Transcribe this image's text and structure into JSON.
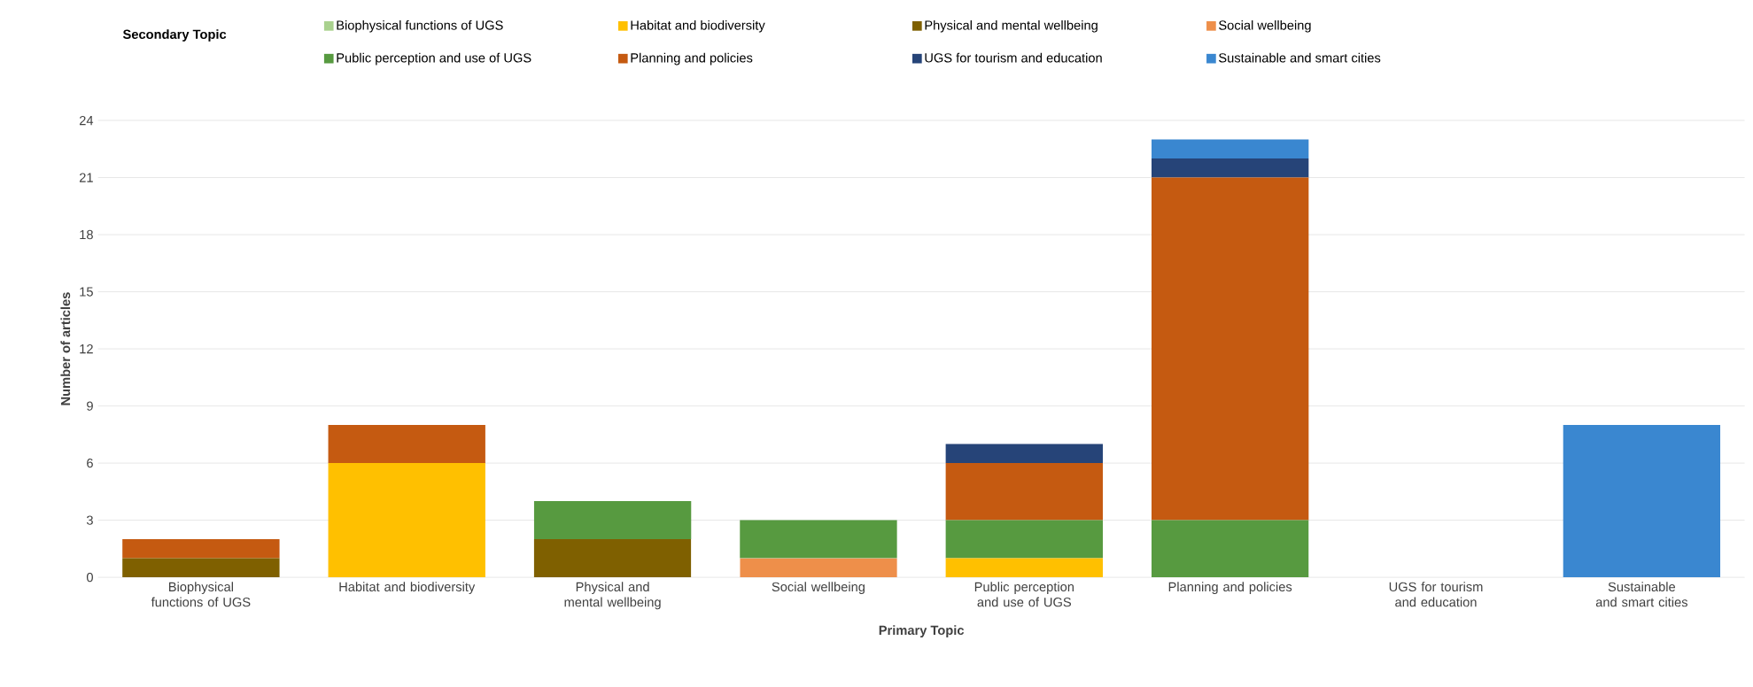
{
  "chart_data": {
    "type": "bar",
    "stacked": true,
    "xlabel": "Primary Topic",
    "ylabel": "Number of articles",
    "legend_title": "Secondary Topic",
    "legend": "top",
    "grid": "y",
    "categories": [
      "Biophysical functions of UGS",
      "Habitat and biodiversity",
      "Physical and mental wellbeing",
      "Social wellbeing",
      "Public perception and use of UGS",
      "Planning and policies",
      "UGS for tourism and education",
      "Sustainable and smart cities"
    ],
    "ylim": [
      0,
      24
    ],
    "yticks": [
      0,
      3,
      6,
      9,
      12,
      15,
      18,
      21,
      24
    ],
    "series": [
      {
        "name": "Biophysical functions of UGS",
        "color": "#a9d18e",
        "values": [
          0,
          0,
          0,
          0,
          0,
          0,
          0,
          0
        ]
      },
      {
        "name": "Habitat and biodiversity",
        "color": "#ffc000",
        "values": [
          0,
          6,
          0,
          0,
          1,
          0,
          0,
          0
        ]
      },
      {
        "name": "Physical and mental wellbeing",
        "color": "#7f6000",
        "values": [
          1,
          0,
          2,
          0,
          0,
          0,
          0,
          0
        ]
      },
      {
        "name": "Social wellbeing",
        "color": "#ee8f4a",
        "values": [
          0,
          0,
          0,
          1,
          0,
          0,
          0,
          0
        ]
      },
      {
        "name": "Public perception and use of UGS",
        "color": "#579a40",
        "values": [
          0,
          0,
          2,
          2,
          2,
          3,
          0,
          0
        ]
      },
      {
        "name": "Planning and policies",
        "color": "#c55a11",
        "values": [
          1,
          2,
          0,
          0,
          3,
          18,
          0,
          0
        ]
      },
      {
        "name": "UGS for tourism and education",
        "color": "#264478",
        "values": [
          0,
          0,
          0,
          0,
          1,
          1,
          0,
          0
        ]
      },
      {
        "name": "Sustainable and smart cities",
        "color": "#3a87d0",
        "values": [
          0,
          0,
          0,
          0,
          0,
          1,
          0,
          8
        ]
      }
    ]
  }
}
